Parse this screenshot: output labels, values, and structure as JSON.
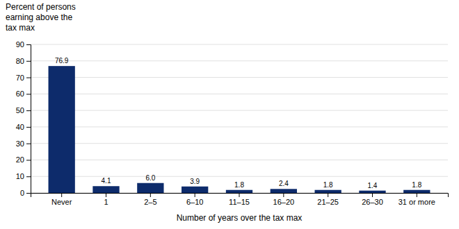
{
  "chart_data": {
    "type": "bar",
    "ylabel": "Percent of persons\nearning above the\ntax max",
    "xlabel": "Number of years over the tax max",
    "categories": [
      "Never",
      "1",
      "2–5",
      "6–10",
      "11–15",
      "16–20",
      "21–25",
      "26–30",
      "31 or more"
    ],
    "values": [
      76.9,
      4.1,
      6.0,
      3.9,
      1.8,
      2.4,
      1.8,
      1.4,
      1.8
    ],
    "value_labels": [
      "76.9",
      "4.1",
      "6.0",
      "3.9",
      "1.8",
      "2.4",
      "1.8",
      "1.4",
      "1.8"
    ],
    "data_labels": true,
    "color": "#0d2b6b",
    "ylim": [
      0,
      90
    ],
    "yticks": [
      0,
      10,
      20,
      30,
      40,
      50,
      60,
      70,
      80,
      90
    ],
    "grid": true
  }
}
